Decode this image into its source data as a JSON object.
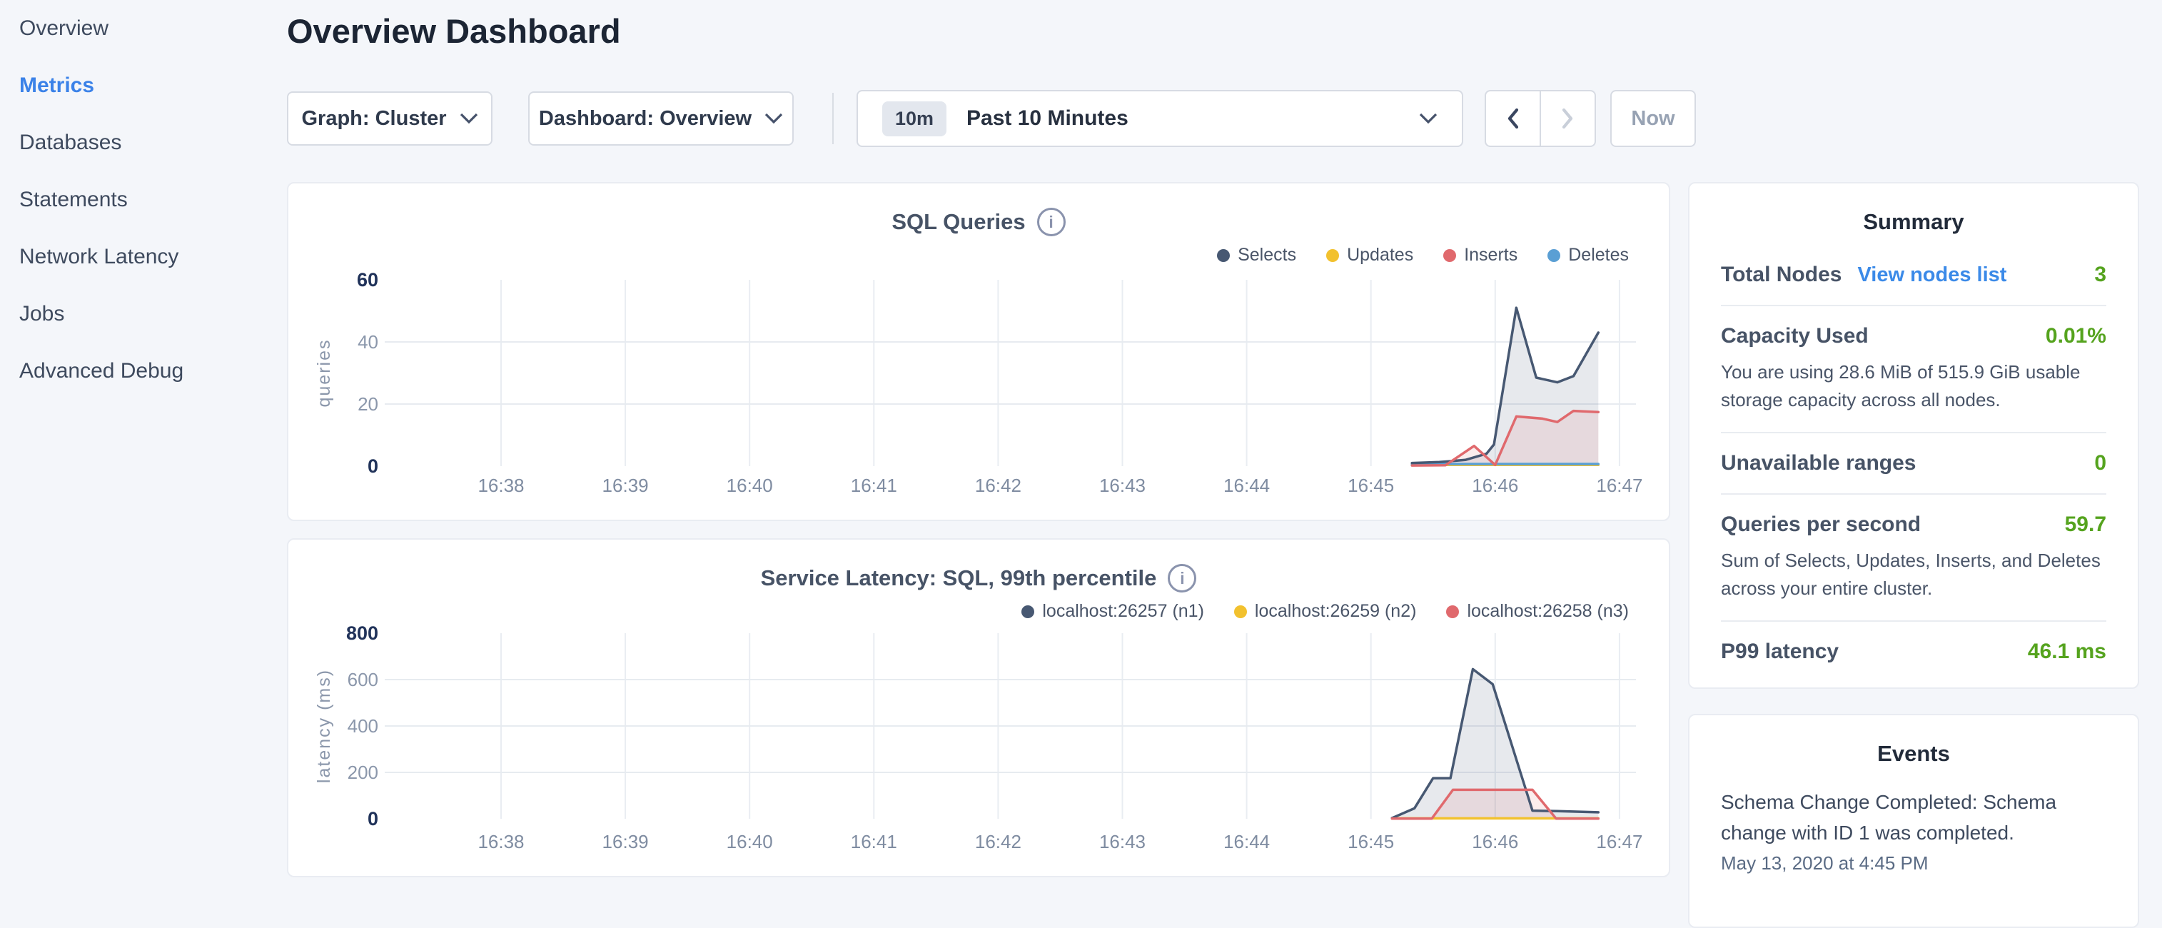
{
  "sidebar": {
    "items": [
      {
        "label": "Overview",
        "active": false
      },
      {
        "label": "Metrics",
        "active": true
      },
      {
        "label": "Databases",
        "active": false
      },
      {
        "label": "Statements",
        "active": false
      },
      {
        "label": "Network Latency",
        "active": false
      },
      {
        "label": "Jobs",
        "active": false
      },
      {
        "label": "Advanced Debug",
        "active": false
      }
    ]
  },
  "header": {
    "title": "Overview Dashboard"
  },
  "toolbar": {
    "graph_dropdown": {
      "label": "Graph: Cluster"
    },
    "dashboard_dropdown": {
      "label": "Dashboard: Overview"
    },
    "time_selector": {
      "badge": "10m",
      "label": "Past 10 Minutes"
    },
    "prev_button": {
      "icon": "chevron-left",
      "enabled": true
    },
    "next_button": {
      "icon": "chevron-right",
      "enabled": false
    },
    "now_button": {
      "label": "Now",
      "enabled": false
    }
  },
  "summary": {
    "title": "Summary",
    "rows": [
      {
        "label": "Total Nodes",
        "link": "View nodes list",
        "value": "3"
      },
      {
        "label": "Capacity Used",
        "value": "0.01%",
        "description": "You are using 28.6 MiB of 515.9 GiB usable storage capacity across all nodes."
      },
      {
        "label": "Unavailable ranges",
        "value": "0"
      },
      {
        "label": "Queries per second",
        "value": "59.7",
        "description": "Sum of Selects, Updates, Inserts, and Deletes across your entire cluster."
      },
      {
        "label": "P99 latency",
        "value": "46.1 ms"
      }
    ]
  },
  "events": {
    "title": "Events",
    "items": [
      {
        "message": "Schema Change Completed: Schema change with ID 1 was completed.",
        "timestamp": "May 13, 2020 at 4:45 PM"
      }
    ]
  },
  "colors": {
    "active_nav_blue": "#3b82e8",
    "link_blue": "#3b8ae8",
    "value_green": "#55a31e",
    "series_navy": "#475872",
    "series_yellow": "#f2c12e",
    "series_red": "#e0696d",
    "series_blue": "#5a9fd4"
  },
  "icons": {
    "info": "info-icon",
    "chevron_down": "chevron-down-icon",
    "chevron_left": "chevron-left-icon",
    "chevron_right": "chevron-right-icon"
  },
  "chart_data": [
    {
      "type": "area",
      "title": "SQL Queries",
      "xlabel": "",
      "ylabel": "queries",
      "x_ticks": [
        "16:38",
        "16:39",
        "16:40",
        "16:41",
        "16:42",
        "16:43",
        "16:44",
        "16:45",
        "16:46",
        "16:47"
      ],
      "y_ticks": [
        0,
        20,
        40,
        60
      ],
      "ylim": [
        0,
        60
      ],
      "grid": true,
      "legend_position": "top-right",
      "x_unit": "clock minute (decimal, 45.33 = 16:45:20)",
      "series": [
        {
          "name": "Selects",
          "color": "#475872",
          "fill": "rgba(71,88,114,0.13)",
          "points": [
            [
              45.33,
              1
            ],
            [
              45.55,
              1.3
            ],
            [
              45.76,
              2
            ],
            [
              45.93,
              4
            ],
            [
              45.99,
              7
            ],
            [
              46.17,
              51
            ],
            [
              46.33,
              28.5
            ],
            [
              46.5,
              27
            ],
            [
              46.63,
              29
            ],
            [
              46.83,
              43
            ]
          ]
        },
        {
          "name": "Updates",
          "color": "#f2c12e",
          "fill": "none",
          "points": [
            [
              45.33,
              0.4
            ],
            [
              46.83,
              0.4
            ]
          ]
        },
        {
          "name": "Inserts",
          "color": "#e0696d",
          "fill": "rgba(224,105,109,0.12)",
          "points": [
            [
              45.33,
              0.2
            ],
            [
              45.6,
              0.3
            ],
            [
              45.83,
              6.5
            ],
            [
              46.0,
              0.4
            ],
            [
              46.17,
              16
            ],
            [
              46.38,
              15.3
            ],
            [
              46.5,
              14.2
            ],
            [
              46.63,
              17.8
            ],
            [
              46.83,
              17.4
            ]
          ]
        },
        {
          "name": "Deletes",
          "color": "#5a9fd4",
          "fill": "none",
          "points": [
            [
              45.33,
              0.7
            ],
            [
              46.83,
              0.7
            ]
          ]
        }
      ],
      "z_order": [
        "Updates",
        "Deletes",
        "Selects",
        "Inserts"
      ]
    },
    {
      "type": "area",
      "title": "Service Latency: SQL, 99th percentile",
      "xlabel": "",
      "ylabel": "latency (ms)",
      "x_ticks": [
        "16:38",
        "16:39",
        "16:40",
        "16:41",
        "16:42",
        "16:43",
        "16:44",
        "16:45",
        "16:46",
        "16:47"
      ],
      "y_ticks": [
        0,
        200,
        400,
        600,
        800
      ],
      "ylim": [
        0,
        800
      ],
      "grid": true,
      "legend_position": "top-right",
      "x_unit": "clock minute (decimal, 45.33 = 16:45:20)",
      "series": [
        {
          "name": "localhost:26257 (n1)",
          "color": "#475872",
          "fill": "rgba(71,88,114,0.13)",
          "points": [
            [
              45.17,
              3
            ],
            [
              45.35,
              45
            ],
            [
              45.5,
              175
            ],
            [
              45.64,
              175
            ],
            [
              45.82,
              645
            ],
            [
              45.98,
              580
            ],
            [
              46.3,
              35
            ],
            [
              46.5,
              33
            ],
            [
              46.83,
              28
            ]
          ]
        },
        {
          "name": "localhost:26259 (n2)",
          "color": "#f2c12e",
          "fill": "none",
          "points": [
            [
              45.17,
              2
            ],
            [
              46.83,
              2
            ]
          ]
        },
        {
          "name": "localhost:26258 (n3)",
          "color": "#e0696d",
          "fill": "rgba(224,105,109,0.12)",
          "points": [
            [
              45.17,
              1
            ],
            [
              45.49,
              1
            ],
            [
              45.66,
              125
            ],
            [
              46.3,
              125
            ],
            [
              46.49,
              1
            ],
            [
              46.83,
              1
            ]
          ]
        }
      ],
      "z_order": [
        "localhost:26259 (n2)",
        "localhost:26257 (n1)",
        "localhost:26258 (n3)"
      ]
    }
  ]
}
